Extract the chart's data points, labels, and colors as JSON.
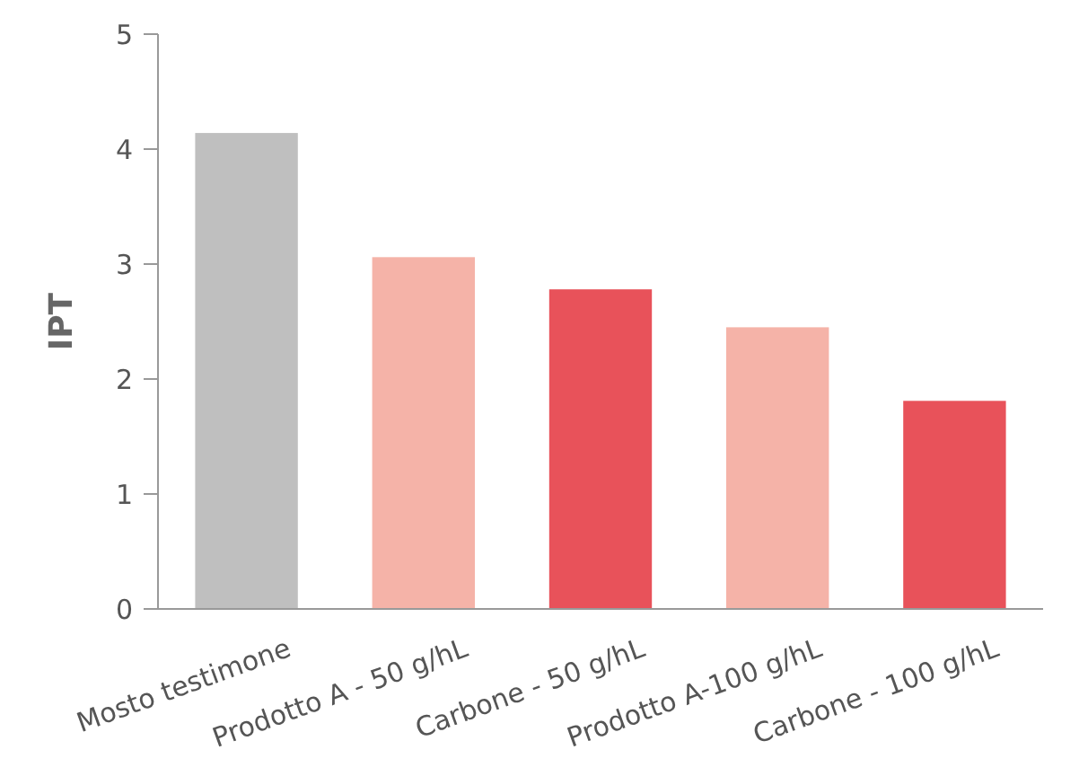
{
  "chart_data": {
    "type": "bar",
    "ylabel": "IPT",
    "categories": [
      "Mosto testimone",
      "Prodotto A - 50 g/hL",
      "Carbone - 50 g/hL",
      "Prodotto A-100 g/hL",
      "Carbone - 100 g/hL"
    ],
    "values": [
      4.14,
      3.06,
      2.78,
      2.45,
      1.81
    ],
    "colors": [
      "#bfbfbf",
      "#f5b3a8",
      "#e8525a",
      "#f5b3a8",
      "#e8525a"
    ],
    "ylim": [
      0,
      5
    ],
    "yticks": [
      0,
      1,
      2,
      3,
      4,
      5
    ],
    "grid": false
  }
}
